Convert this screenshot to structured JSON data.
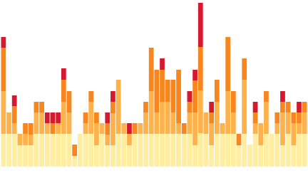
{
  "chart_data": {
    "type": "bar",
    "stacked": true,
    "grid": false,
    "tick_labels": false,
    "categories": [
      null,
      null,
      null,
      null,
      null,
      null,
      null,
      null,
      null,
      null,
      null,
      null,
      null,
      null,
      null,
      null,
      null,
      null,
      null,
      null,
      null,
      null,
      null,
      null,
      null,
      null,
      null,
      null,
      null,
      null,
      null,
      null,
      null,
      null,
      null,
      null,
      null,
      null,
      null,
      null,
      null,
      null,
      null,
      null,
      null,
      null,
      null,
      null,
      null,
      null,
      null,
      null,
      null,
      null,
      null,
      null
    ],
    "ylim": [
      0,
      230
    ],
    "series": [
      {
        "color": "#ffeda0",
        "values": [
          46,
          46,
          46,
          30,
          30,
          30,
          46,
          46,
          46,
          46,
          46,
          46,
          46,
          15,
          46,
          46,
          46,
          30,
          46,
          30,
          30,
          46,
          46,
          30,
          46,
          46,
          46,
          46,
          46,
          46,
          46,
          46,
          46,
          46,
          46,
          30,
          47,
          46,
          30,
          46,
          46,
          46,
          46,
          30,
          46,
          31,
          46,
          30,
          46,
          46,
          46,
          30,
          46,
          30,
          46,
          46
        ]
      },
      {
        "color": "#feb24c",
        "values": [
          60,
          30,
          15,
          16,
          16,
          15,
          30,
          30,
          15,
          0,
          15,
          45,
          30,
          0,
          0,
          15,
          45,
          31,
          15,
          15,
          45,
          76,
          15,
          16,
          0,
          15,
          30,
          60,
          30,
          45,
          45,
          30,
          15,
          0,
          30,
          46,
          60,
          30,
          31,
          45,
          15,
          60,
          30,
          0,
          76,
          0,
          15,
          31,
          45,
          0,
          15,
          46,
          30,
          31,
          15,
          30
        ]
      },
      {
        "color": "#f7861e",
        "values": [
          61,
          0,
          24,
          0,
          15,
          16,
          15,
          15,
          0,
          15,
          0,
          31,
          30,
          16,
          0,
          15,
          15,
          15,
          0,
          16,
          16,
          0,
          0,
          0,
          15,
          0,
          15,
          61,
          60,
          45,
          31,
          46,
          75,
          15,
          15,
          45,
          61,
          0,
          15,
          31,
          0,
          76,
          30,
          16,
          30,
          0,
          15,
          0,
          15,
          0,
          15,
          15,
          15,
          15,
          15,
          15
        ]
      },
      {
        "color": "#d7192f",
        "values": [
          15,
          0,
          15,
          0,
          0,
          0,
          0,
          0,
          15,
          15,
          15,
          16,
          0,
          0,
          0,
          0,
          0,
          0,
          0,
          15,
          15,
          0,
          0,
          15,
          0,
          0,
          0,
          0,
          0,
          16,
          0,
          0,
          0,
          0,
          15,
          15,
          62,
          0,
          15,
          0,
          0,
          0,
          0,
          0,
          0,
          0,
          15,
          0,
          0,
          0,
          0,
          15,
          0,
          0,
          15,
          0
        ]
      }
    ]
  }
}
